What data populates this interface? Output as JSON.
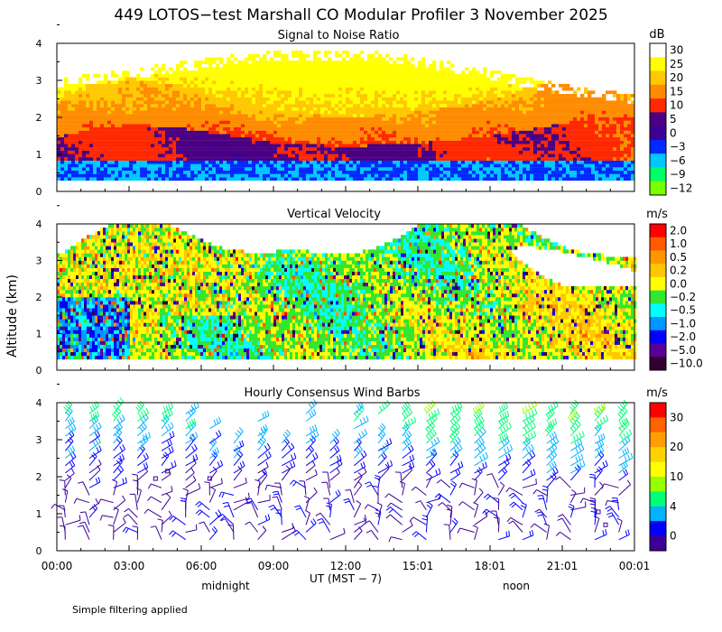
{
  "figure": {
    "title": "449 LOTOS−test Marshall CO Modular Profiler  3 November 2025",
    "ylabel": "Altitude (km)",
    "xlabel": "UT  (MST − 7)",
    "time_ticks": [
      "00:00",
      "03:00",
      "06:00",
      "09:00",
      "12:00",
      "15:01",
      "18:01",
      "21:01",
      "00:01"
    ],
    "local_labels": {
      "midnight": "midnight",
      "noon": "noon"
    },
    "footnote": "Simple filtering applied"
  },
  "chart_data": [
    {
      "type": "heatmap",
      "title": "Signal to Noise Ratio",
      "unit": "dB",
      "x_range_hours": [
        0,
        24
      ],
      "ylim": [
        0,
        4
      ],
      "y_ticks": [
        0,
        1,
        2,
        3,
        4
      ],
      "colorbar_labels": [
        "30",
        "25",
        "20",
        "15",
        "10",
        "5",
        "0",
        "−3",
        "−6",
        "−9",
        "−12"
      ],
      "colorbar_colors": [
        "#ffffff",
        "#ffff00",
        "#ffc800",
        "#ff8c00",
        "#ff2800",
        "#4b0082",
        "#3c0096",
        "#0028ff",
        "#00c8ff",
        "#00ff64",
        "#78ff00"
      ]
    },
    {
      "type": "heatmap",
      "title": "Vertical Velocity",
      "unit": "m/s",
      "x_range_hours": [
        0,
        24
      ],
      "ylim": [
        0,
        4
      ],
      "y_ticks": [
        0,
        1,
        2,
        3,
        4
      ],
      "colorbar_labels": [
        "2.0",
        "1.0",
        "0.5",
        "0.2",
        "0.0",
        "−0.2",
        "−0.5",
        "−1.0",
        "−2.0",
        "−5.0",
        "−10.0"
      ],
      "colorbar_colors": [
        "#ff0000",
        "#ff5a00",
        "#ff9600",
        "#ffc800",
        "#ffff00",
        "#32e632",
        "#00ffff",
        "#0096ff",
        "#0000ff",
        "#5a0096",
        "#320032"
      ]
    },
    {
      "type": "scatter",
      "subtype": "wind-barbs",
      "title": "Hourly Consensus Wind Barbs",
      "unit": "m/s",
      "x_range_hours": [
        0,
        24
      ],
      "ylim": [
        0,
        4
      ],
      "y_ticks": [
        0,
        1,
        2,
        3,
        4
      ],
      "colorbar_labels": [
        "30",
        "20",
        "10",
        "4",
        "0"
      ],
      "colorbar_colors": [
        "#ff0000",
        "#ff6400",
        "#ffa000",
        "#ffd200",
        "#ffff00",
        "#96ff00",
        "#00ff78",
        "#00b4ff",
        "#0000ff",
        "#3c0096"
      ]
    }
  ]
}
